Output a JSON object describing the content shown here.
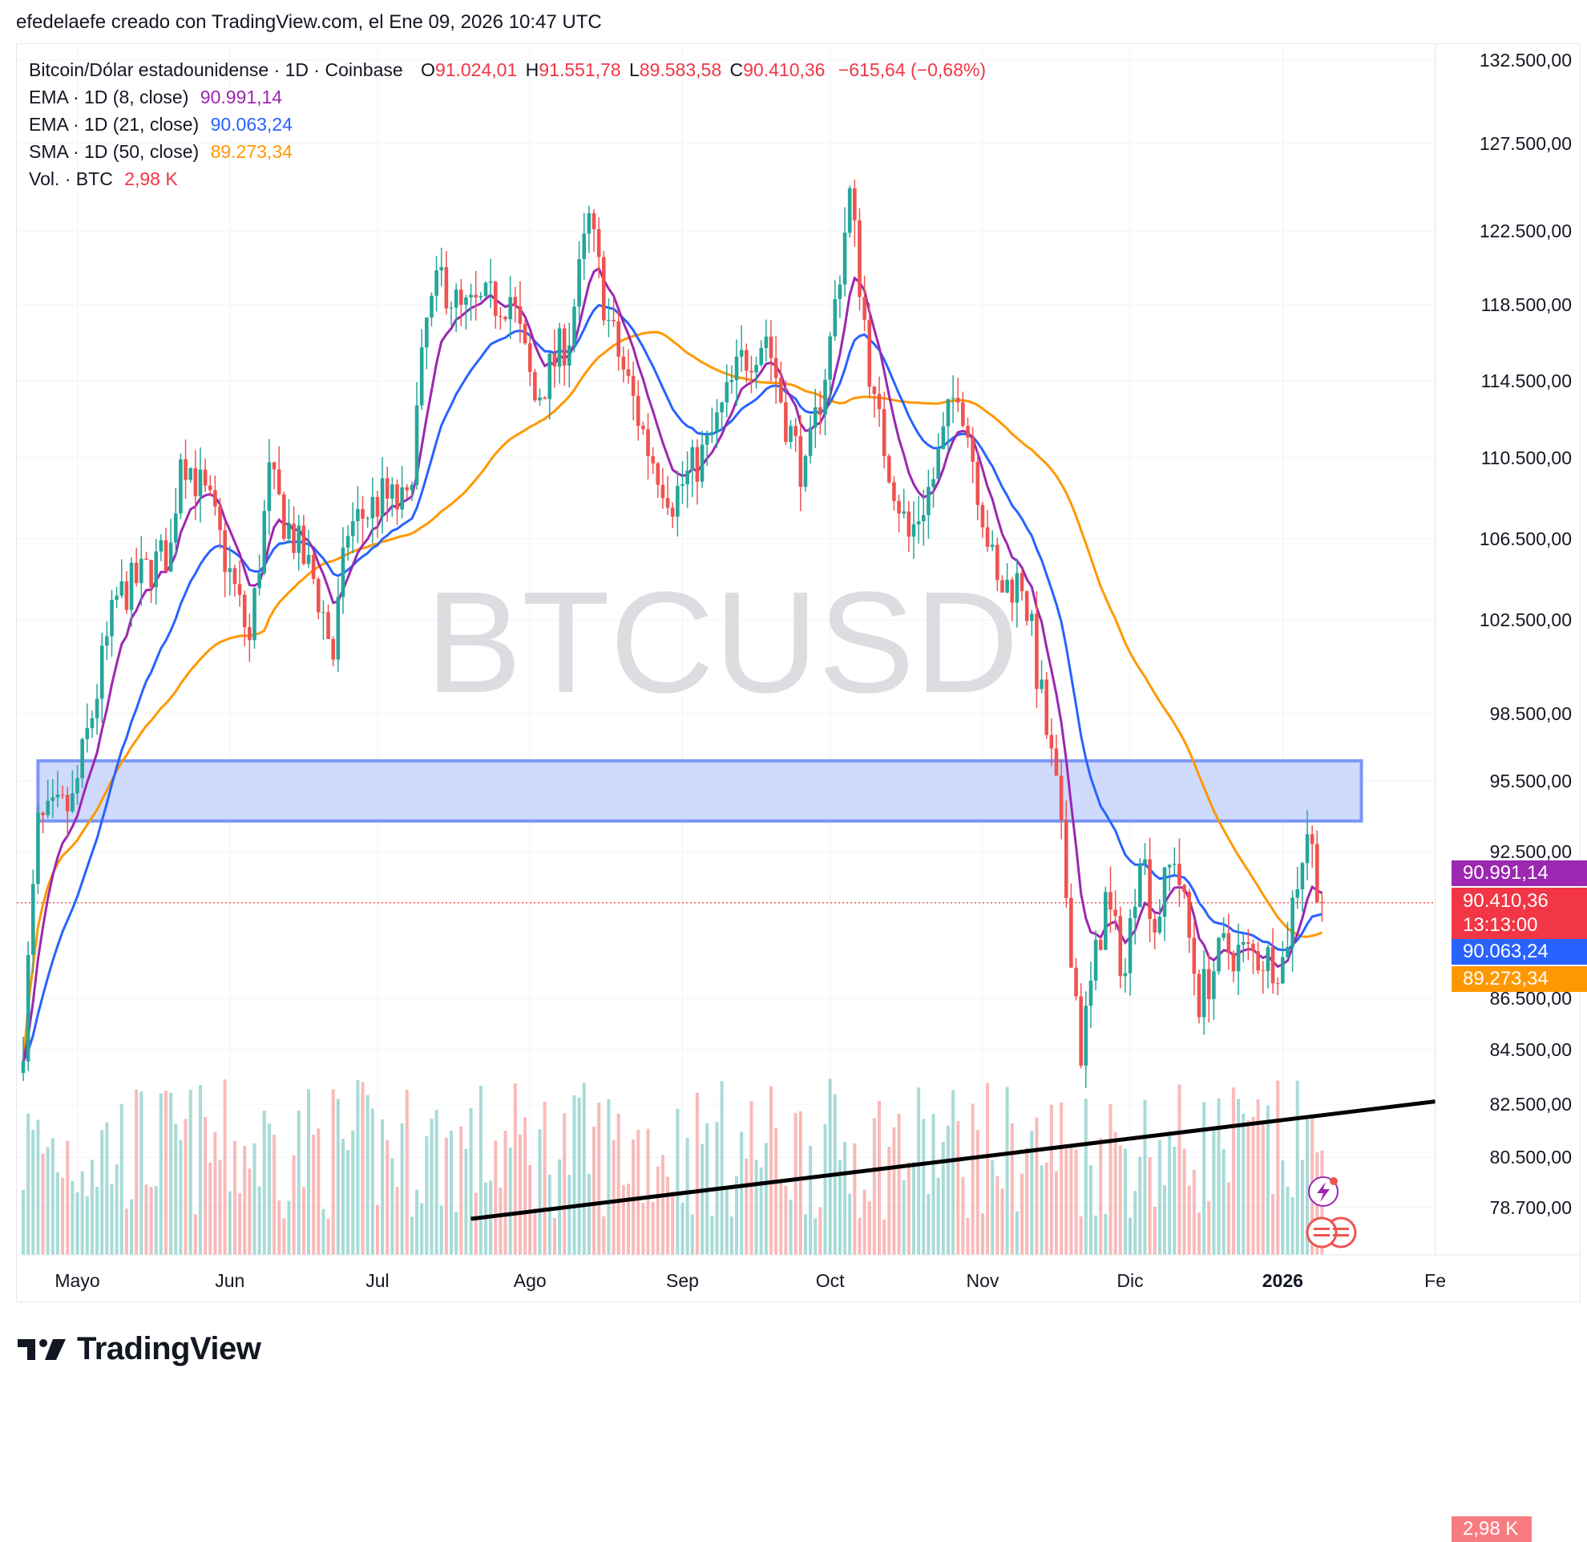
{
  "header": {
    "text": "efedelaefe creado con TradingView.com, el Ene 09, 2026 10:47 UTC"
  },
  "legend": {
    "symbol": "Bitcoin/Dólar estadounidense · 1D · Coinbase",
    "open_label": "O",
    "open": "91.024,01",
    "high_label": "H",
    "high": "91.551,78",
    "low_label": "L",
    "low": "89.583,58",
    "close_label": "C",
    "close": "90.410,36",
    "change": "−615,64 (−0,68%)",
    "ema8_label": "EMA · 1D (8, close)",
    "ema8_value": "90.991,14",
    "ema21_label": "EMA · 1D (21, close)",
    "ema21_value": "90.063,24",
    "sma50_label": "SMA · 1D (50, close)",
    "sma50_value": "89.273,34",
    "vol_label": "Vol. · BTC",
    "vol_value": "2,98 K"
  },
  "watermark": "BTCUSD",
  "price_tags": {
    "ema8": "90.991,14",
    "last": "90.410,36",
    "countdown": "13:13:00",
    "ema21": "90.063,24",
    "sma50": "89.273,34",
    "volume": "2,98 K"
  },
  "colors": {
    "up": "#26a69a",
    "down": "#ef5350",
    "ema8": "#9c27b0",
    "ema21": "#2962ff",
    "sma50": "#ff9800",
    "zone_fill": "#c7d3fb",
    "zone_border": "#7b96f5",
    "trendline": "#000000"
  },
  "footer": {
    "brand": "TradingView"
  },
  "chart_data": {
    "type": "candlestick",
    "title": "Bitcoin/Dólar estadounidense · 1D · Coinbase",
    "y_ticks": [
      {
        "label": "132.500,00",
        "value": 132500
      },
      {
        "label": "127.500,00",
        "value": 127500
      },
      {
        "label": "122.500,00",
        "value": 122500
      },
      {
        "label": "118.500,00",
        "value": 118500
      },
      {
        "label": "114.500,00",
        "value": 114500
      },
      {
        "label": "110.500,00",
        "value": 110500
      },
      {
        "label": "106.500,00",
        "value": 106500
      },
      {
        "label": "102.500,00",
        "value": 102500
      },
      {
        "label": "98.500,00",
        "value": 98500
      },
      {
        "label": "95.500,00",
        "value": 95500
      },
      {
        "label": "92.500,00",
        "value": 92500
      },
      {
        "label": "86.500,00",
        "value": 86500
      },
      {
        "label": "84.500,00",
        "value": 84500
      },
      {
        "label": "82.500,00",
        "value": 82500
      },
      {
        "label": "80.500,00",
        "value": 80500
      },
      {
        "label": "78.700,00",
        "value": 78700
      }
    ],
    "x_ticks": [
      {
        "label": "Mayo",
        "date": "2025-05-01"
      },
      {
        "label": "Jun",
        "date": "2025-06-01"
      },
      {
        "label": "Jul",
        "date": "2025-07-01"
      },
      {
        "label": "Ago",
        "date": "2025-08-01"
      },
      {
        "label": "Sep",
        "date": "2025-09-01"
      },
      {
        "label": "Oct",
        "date": "2025-10-01"
      },
      {
        "label": "Nov",
        "date": "2025-11-01"
      },
      {
        "label": "Dic",
        "date": "2025-12-01"
      },
      {
        "label": "2026",
        "date": "2026-01-01",
        "bold": true
      },
      {
        "label": "Fe",
        "date": "2026-02-01"
      }
    ],
    "date_range": [
      "2025-04-20",
      "2026-01-09"
    ],
    "anchors": [
      [
        "2025-04-20",
        85000
      ],
      [
        "2025-04-23",
        93500
      ],
      [
        "2025-04-30",
        94500
      ],
      [
        "2025-05-09",
        103500
      ],
      [
        "2025-05-20",
        106000
      ],
      [
        "2025-05-22",
        111000
      ],
      [
        "2025-05-28",
        108000
      ],
      [
        "2025-06-05",
        101500
      ],
      [
        "2025-06-09",
        109500
      ],
      [
        "2025-06-12",
        107500
      ],
      [
        "2025-06-18",
        104500
      ],
      [
        "2025-06-22",
        101000
      ],
      [
        "2025-06-25",
        107000
      ],
      [
        "2025-07-02",
        108500
      ],
      [
        "2025-07-07",
        108000
      ],
      [
        "2025-07-11",
        117500
      ],
      [
        "2025-07-14",
        120000
      ],
      [
        "2025-07-18",
        118000
      ],
      [
        "2025-07-23",
        118500
      ],
      [
        "2025-07-28",
        119000
      ],
      [
        "2025-08-02",
        113500
      ],
      [
        "2025-08-09",
        117000
      ],
      [
        "2025-08-13",
        123000
      ],
      [
        "2025-08-17",
        117500
      ],
      [
        "2025-08-25",
        111000
      ],
      [
        "2025-08-30",
        108500
      ],
      [
        "2025-09-06",
        111000
      ],
      [
        "2025-09-13",
        115500
      ],
      [
        "2025-09-18",
        117000
      ],
      [
        "2025-09-22",
        112500
      ],
      [
        "2025-09-26",
        109500
      ],
      [
        "2025-10-01",
        116500
      ],
      [
        "2025-10-05",
        124500
      ],
      [
        "2025-10-10",
        113000
      ],
      [
        "2025-10-17",
        106500
      ],
      [
        "2025-10-22",
        109500
      ],
      [
        "2025-10-27",
        114500
      ],
      [
        "2025-11-04",
        104000
      ],
      [
        "2025-11-09",
        104500
      ],
      [
        "2025-11-13",
        99000
      ],
      [
        "2025-11-16",
        95000
      ],
      [
        "2025-11-21",
        84500
      ],
      [
        "2025-11-26",
        90500
      ],
      [
        "2025-11-30",
        87500
      ],
      [
        "2025-12-03",
        93000
      ],
      [
        "2025-12-06",
        89500
      ],
      [
        "2025-12-10",
        92500
      ],
      [
        "2025-12-15",
        86500
      ],
      [
        "2025-12-20",
        88500
      ],
      [
        "2026-01-01",
        88000
      ],
      [
        "2026-01-04",
        91500
      ],
      [
        "2026-01-06",
        93500
      ],
      [
        "2026-01-09",
        90410
      ]
    ],
    "ema8_last": 90991.14,
    "ema21_last": 90063.24,
    "sma50_last": 89273.34,
    "last_close": 90410.36,
    "zone": {
      "from_date": "2025-04-23",
      "to_date": "2026-01-17",
      "low": 93800,
      "high": 96400
    },
    "trendline": {
      "start_date": "2025-07-20",
      "start_price": 78300,
      "end_date": "2026-02-01",
      "end_price": 82600
    },
    "grid": true
  }
}
